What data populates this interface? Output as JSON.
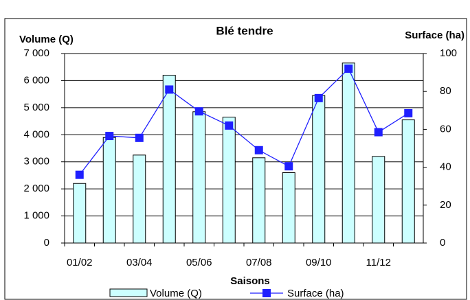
{
  "chart_data": {
    "type": "bar_line",
    "title": "Blé tendre",
    "x_label": "Saisons",
    "y_label": "Volume (Q)",
    "y2_label": "Surface (ha)",
    "categories": [
      "01/02",
      null,
      "03/04",
      null,
      "05/06",
      null,
      "07/08",
      null,
      "09/10",
      null,
      "11/12",
      null
    ],
    "series": [
      {
        "name": "Volume (Q)",
        "type": "bar",
        "color": "#ccffff",
        "values": [
          2200,
          3900,
          3250,
          6200,
          4850,
          4650,
          3150,
          2600,
          5450,
          6650,
          3200,
          4550
        ]
      },
      {
        "name": "Surface (ha)",
        "type": "line",
        "axis": "y2",
        "color": "#1f1fff",
        "values": [
          36,
          56.5,
          55.5,
          81,
          69.5,
          62,
          49,
          40.5,
          76.5,
          92,
          58.5,
          68.5
        ]
      }
    ],
    "ylim": [
      0,
      7000
    ],
    "yticks": [
      0,
      {
        "value": 1000,
        "label": "1 000"
      },
      {
        "value": 2000,
        "label": "2 000"
      },
      {
        "value": 3000,
        "label": "3 000"
      },
      {
        "value": 4000,
        "label": "4 000"
      },
      {
        "value": 5000,
        "label": "5 000"
      },
      {
        "value": 6000,
        "label": "6 000"
      },
      {
        "value": 7000,
        "label": "7 000"
      }
    ],
    "y2lim": [
      0,
      100
    ],
    "y2ticks": [
      0,
      20,
      40,
      60,
      80,
      100
    ],
    "grid": true
  }
}
